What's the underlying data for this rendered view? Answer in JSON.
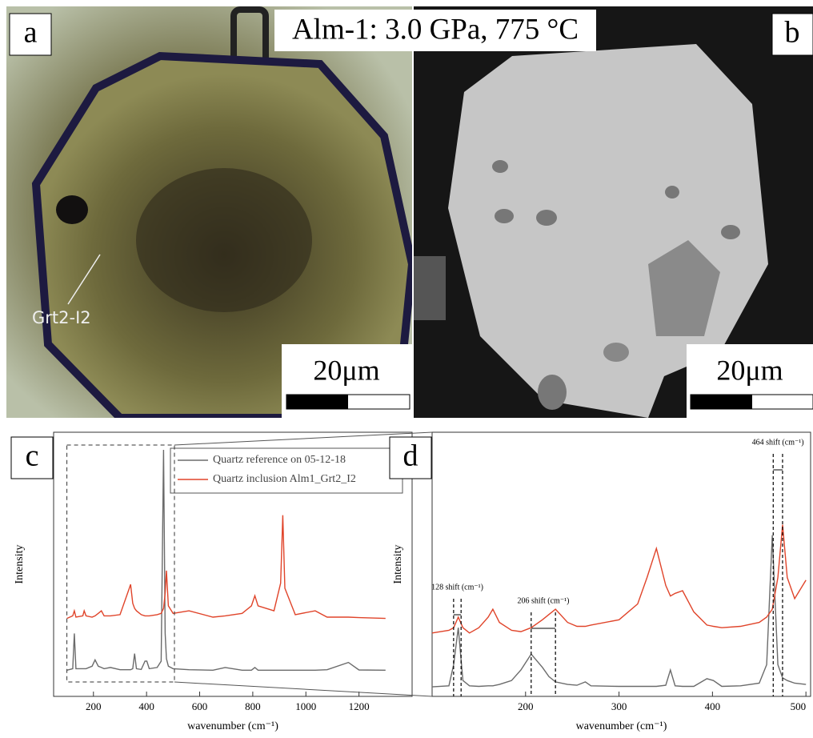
{
  "panels": {
    "a": {
      "label": "a",
      "callout": "Grt2-I2",
      "scale": "20μm"
    },
    "b": {
      "label": "b",
      "scale": "20μm"
    },
    "title": "Alm-1: 3.0 GPa, 775 °C"
  },
  "chart_data": [
    {
      "type": "line",
      "label": "c",
      "xlabel": "wavenumber (cm⁻¹)",
      "ylabel": "Intensity",
      "xlim": [
        50,
        1400
      ],
      "xticks": [
        200,
        400,
        600,
        800,
        1000,
        1200
      ],
      "ylim": [
        -5,
        100
      ],
      "x": [
        100,
        122,
        128,
        134,
        160,
        165,
        172,
        195,
        206,
        218,
        230,
        240,
        264,
        300,
        335,
        340,
        348,
        355,
        362,
        380,
        394,
        401,
        410,
        440,
        455,
        464,
        470,
        475,
        482,
        500,
        560,
        650,
        696,
        760,
        795,
        808,
        820,
        880,
        905,
        913,
        921,
        960,
        1035,
        1080,
        1160,
        1200,
        1300
      ],
      "series": [
        {
          "name": "Quartz reference on 05-12-18",
          "color": "#6b6b6b",
          "values": [
            5.4,
            6,
            20,
            6,
            6,
            6,
            6,
            7,
            9.5,
            7,
            6.5,
            6,
            6.5,
            5.6,
            5.6,
            5.6,
            6,
            12,
            6,
            5.7,
            9,
            9,
            6,
            6.5,
            9,
            93,
            20,
            10,
            7,
            6,
            5.6,
            5.4,
            6.5,
            5.4,
            5.4,
            6.5,
            5.4,
            5.4,
            5.4,
            5.4,
            5.4,
            5.4,
            5.4,
            5.6,
            8.5,
            5.5,
            5.4
          ]
        },
        {
          "name": "Quartz inclusion Alm1_Grt2_I2",
          "color": "#e0442a",
          "values": [
            26,
            27,
            29,
            26.5,
            27,
            29,
            27,
            26.5,
            27,
            28,
            29,
            27,
            27,
            27.5,
            38,
            39.5,
            32,
            30,
            29,
            27.5,
            27,
            27,
            27,
            27.5,
            28,
            30,
            36,
            45,
            31,
            28,
            29,
            26.5,
            27,
            28,
            31,
            35,
            31,
            29,
            40,
            67,
            38,
            27.5,
            29,
            26.5,
            26.5,
            26.3,
            26
          ]
        }
      ]
    },
    {
      "type": "line",
      "label": "d",
      "xlabel": "wavenumber (cm⁻¹)",
      "ylabel": "Intensity",
      "xlim": [
        100,
        505
      ],
      "xticks": [
        200,
        300,
        400,
        500
      ],
      "ylim": [
        0,
        100
      ],
      "x": [
        100,
        118,
        123,
        128,
        133,
        140,
        150,
        160,
        165,
        172,
        185,
        195,
        206,
        218,
        225,
        232,
        245,
        255,
        264,
        270,
        300,
        320,
        330,
        340,
        350,
        355,
        360,
        368,
        380,
        394,
        401,
        410,
        430,
        450,
        458,
        464,
        470,
        475,
        480,
        488,
        500
      ],
      "series": [
        {
          "name": "Quartz reference on 05-12-18",
          "color": "#6b6b6b",
          "values": [
            3.6,
            4,
            12,
            26,
            6,
            4,
            3.8,
            4,
            4,
            4.5,
            6,
            10,
            16,
            11,
            7.5,
            5.5,
            4.5,
            4.2,
            5.5,
            4,
            3.8,
            3.8,
            3.8,
            3.8,
            4.2,
            10,
            4,
            3.8,
            3.8,
            6.7,
            6,
            3.8,
            4,
            5,
            12,
            61,
            12,
            7,
            6,
            5,
            4.5
          ]
        },
        {
          "name": "Quartz inclusion Alm1_Grt2_I2",
          "color": "#e0442a",
          "values": [
            24,
            25,
            26,
            30,
            26,
            24,
            26,
            30,
            33,
            28,
            25,
            24.5,
            26,
            29,
            31,
            33,
            28,
            26.5,
            26.5,
            27,
            29,
            35,
            45,
            56,
            42,
            38,
            39,
            40,
            32,
            27,
            26.5,
            26,
            26.5,
            28,
            30,
            33,
            45,
            65,
            45,
            37,
            44
          ]
        }
      ],
      "annotations": [
        {
          "text": "128 shift (cm⁻¹)",
          "x": [
            123,
            131
          ]
        },
        {
          "text": "206 shift (cm⁻¹)",
          "x": [
            206,
            232
          ]
        },
        {
          "text": "464 shift (cm⁻¹)",
          "x": [
            465,
            475
          ]
        }
      ]
    }
  ]
}
